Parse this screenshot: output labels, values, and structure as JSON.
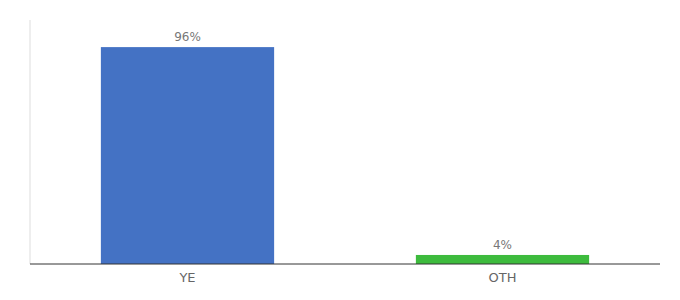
{
  "chart_data": {
    "type": "bar",
    "categories": [
      "YE",
      "OTH"
    ],
    "values": [
      96,
      4
    ],
    "value_labels": [
      "96%",
      "4%"
    ],
    "colors": [
      "#4472c4",
      "#3dbb3d"
    ],
    "ylim": [
      0,
      108
    ],
    "data_labels": true,
    "tick_labels": "x",
    "grid": false
  }
}
